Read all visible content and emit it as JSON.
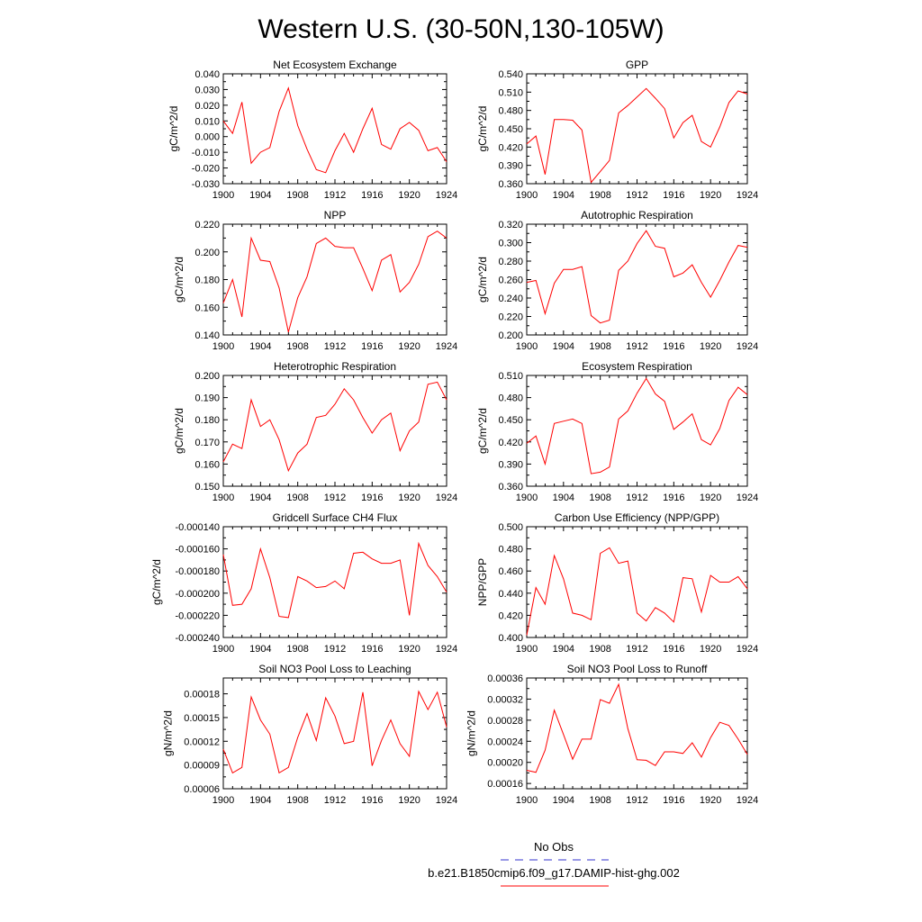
{
  "figure": {
    "title": "Western U.S. (30-50N,130-105W)",
    "legend": [
      {
        "label": "No Obs",
        "color": "#3333cc",
        "style": "dashed"
      },
      {
        "label": "b.e21.B1850cmip6.f09_g17.DAMIP-hist-ghg.002",
        "color": "#ff0000",
        "style": "solid"
      }
    ]
  },
  "colors": {
    "series": "#ff0000",
    "axis": "#000000"
  },
  "chart_data": [
    {
      "type": "line",
      "title": "Net Ecosystem Exchange",
      "ylabel": "gC/m^2/d",
      "xlim": [
        1900,
        1924
      ],
      "ylim": [
        -0.03,
        0.04
      ],
      "xticks": [
        1900,
        1904,
        1908,
        1912,
        1916,
        1920,
        1924
      ],
      "yticks": [
        "0.040",
        "0.030",
        "0.020",
        "0.010",
        "0.000",
        "-0.010",
        "-0.020",
        "-0.030"
      ],
      "x": [
        1900,
        1901,
        1902,
        1903,
        1904,
        1905,
        1906,
        1907,
        1908,
        1909,
        1910,
        1911,
        1912,
        1913,
        1914,
        1915,
        1916,
        1917,
        1918,
        1919,
        1920,
        1921,
        1922,
        1923,
        1924
      ],
      "series": [
        {
          "values": [
            0.01,
            0.002,
            0.022,
            -0.017,
            -0.01,
            -0.007,
            0.016,
            0.031,
            0.007,
            -0.008,
            -0.021,
            -0.023,
            -0.009,
            0.002,
            -0.01,
            0.005,
            0.018,
            -0.005,
            -0.008,
            0.005,
            0.009,
            0.004,
            -0.009,
            -0.007,
            -0.016
          ]
        }
      ]
    },
    {
      "type": "line",
      "title": "GPP",
      "ylabel": "gC/m^2/d",
      "xlim": [
        1900,
        1924
      ],
      "ylim": [
        0.36,
        0.54
      ],
      "xticks": [
        1900,
        1904,
        1908,
        1912,
        1916,
        1920,
        1924
      ],
      "yticks": [
        "0.540",
        "0.510",
        "0.480",
        "0.450",
        "0.420",
        "0.390",
        "0.360"
      ],
      "x": [
        1900,
        1901,
        1902,
        1903,
        1904,
        1905,
        1906,
        1907,
        1908,
        1909,
        1910,
        1911,
        1912,
        1913,
        1914,
        1915,
        1916,
        1917,
        1918,
        1919,
        1920,
        1921,
        1922,
        1923,
        1924
      ],
      "series": [
        {
          "values": [
            0.425,
            0.438,
            0.375,
            0.465,
            0.465,
            0.464,
            0.448,
            0.362,
            0.38,
            0.398,
            0.476,
            0.488,
            0.502,
            0.516,
            0.5,
            0.483,
            0.435,
            0.46,
            0.472,
            0.429,
            0.42,
            0.453,
            0.493,
            0.512,
            0.507
          ]
        }
      ]
    },
    {
      "type": "line",
      "title": "NPP",
      "ylabel": "gC/m^2/d",
      "xlim": [
        1900,
        1924
      ],
      "ylim": [
        0.14,
        0.22
      ],
      "xticks": [
        1900,
        1904,
        1908,
        1912,
        1916,
        1920,
        1924
      ],
      "yticks": [
        "0.220",
        "0.200",
        "0.180",
        "0.160",
        "0.140"
      ],
      "x": [
        1900,
        1901,
        1902,
        1903,
        1904,
        1905,
        1906,
        1907,
        1908,
        1909,
        1910,
        1911,
        1912,
        1913,
        1914,
        1915,
        1916,
        1917,
        1918,
        1919,
        1920,
        1921,
        1922,
        1923,
        1924
      ],
      "series": [
        {
          "values": [
            0.163,
            0.18,
            0.153,
            0.21,
            0.194,
            0.193,
            0.174,
            0.142,
            0.167,
            0.182,
            0.206,
            0.21,
            0.204,
            0.203,
            0.203,
            0.188,
            0.172,
            0.194,
            0.198,
            0.171,
            0.178,
            0.191,
            0.211,
            0.215,
            0.21
          ]
        }
      ]
    },
    {
      "type": "line",
      "title": "Autotrophic Respiration",
      "ylabel": "gC/m^2/d",
      "xlim": [
        1900,
        1924
      ],
      "ylim": [
        0.2,
        0.32
      ],
      "xticks": [
        1900,
        1904,
        1908,
        1912,
        1916,
        1920,
        1924
      ],
      "yticks": [
        "0.320",
        "0.300",
        "0.280",
        "0.260",
        "0.240",
        "0.220",
        "0.200"
      ],
      "x": [
        1900,
        1901,
        1902,
        1903,
        1904,
        1905,
        1906,
        1907,
        1908,
        1909,
        1910,
        1911,
        1912,
        1913,
        1914,
        1915,
        1916,
        1917,
        1918,
        1919,
        1920,
        1921,
        1922,
        1923,
        1924
      ],
      "series": [
        {
          "values": [
            0.257,
            0.259,
            0.223,
            0.256,
            0.271,
            0.271,
            0.274,
            0.221,
            0.213,
            0.216,
            0.27,
            0.28,
            0.299,
            0.313,
            0.296,
            0.294,
            0.263,
            0.267,
            0.276,
            0.257,
            0.241,
            0.259,
            0.279,
            0.297,
            0.295
          ]
        }
      ]
    },
    {
      "type": "line",
      "title": "Heterotrophic Respiration",
      "ylabel": "gC/m^2/d",
      "xlim": [
        1900,
        1924
      ],
      "ylim": [
        0.15,
        0.2
      ],
      "xticks": [
        1900,
        1904,
        1908,
        1912,
        1916,
        1920,
        1924
      ],
      "yticks": [
        "0.200",
        "0.190",
        "0.180",
        "0.170",
        "0.160",
        "0.150"
      ],
      "x": [
        1900,
        1901,
        1902,
        1903,
        1904,
        1905,
        1906,
        1907,
        1908,
        1909,
        1910,
        1911,
        1912,
        1913,
        1914,
        1915,
        1916,
        1917,
        1918,
        1919,
        1920,
        1921,
        1922,
        1923,
        1924
      ],
      "series": [
        {
          "values": [
            0.161,
            0.169,
            0.167,
            0.189,
            0.177,
            0.18,
            0.171,
            0.157,
            0.165,
            0.169,
            0.181,
            0.182,
            0.187,
            0.194,
            0.189,
            0.181,
            0.174,
            0.18,
            0.183,
            0.166,
            0.175,
            0.179,
            0.196,
            0.197,
            0.189
          ]
        }
      ]
    },
    {
      "type": "line",
      "title": "Ecosystem Respiration",
      "ylabel": "gC/m^2/d",
      "xlim": [
        1900,
        1924
      ],
      "ylim": [
        0.36,
        0.51
      ],
      "xticks": [
        1900,
        1904,
        1908,
        1912,
        1916,
        1920,
        1924
      ],
      "yticks": [
        "0.510",
        "0.480",
        "0.450",
        "0.420",
        "0.390",
        "0.360"
      ],
      "x": [
        1900,
        1901,
        1902,
        1903,
        1904,
        1905,
        1906,
        1907,
        1908,
        1909,
        1910,
        1911,
        1912,
        1913,
        1914,
        1915,
        1916,
        1917,
        1918,
        1919,
        1920,
        1921,
        1922,
        1923,
        1924
      ],
      "series": [
        {
          "values": [
            0.418,
            0.428,
            0.39,
            0.445,
            0.448,
            0.451,
            0.445,
            0.377,
            0.379,
            0.386,
            0.451,
            0.462,
            0.486,
            0.506,
            0.485,
            0.475,
            0.437,
            0.447,
            0.458,
            0.423,
            0.416,
            0.438,
            0.476,
            0.494,
            0.484
          ]
        }
      ]
    },
    {
      "type": "line",
      "title": "Gridcell Surface CH4 Flux",
      "ylabel": "gC/m^2/d",
      "xlim": [
        1900,
        1924
      ],
      "ylim": [
        -0.00024,
        -0.00014
      ],
      "xticks": [
        1900,
        1904,
        1908,
        1912,
        1916,
        1920,
        1924
      ],
      "yticks": [
        "-0.000140",
        "-0.000160",
        "-0.000180",
        "-0.000200",
        "-0.000220",
        "-0.000240"
      ],
      "x": [
        1900,
        1901,
        1902,
        1903,
        1904,
        1905,
        1906,
        1907,
        1908,
        1909,
        1910,
        1911,
        1912,
        1913,
        1914,
        1915,
        1916,
        1917,
        1918,
        1919,
        1920,
        1921,
        1922,
        1923,
        1924
      ],
      "series": [
        {
          "values": [
            -0.000165,
            -0.000211,
            -0.00021,
            -0.000196,
            -0.00016,
            -0.000186,
            -0.000221,
            -0.000222,
            -0.000185,
            -0.000189,
            -0.000195,
            -0.000194,
            -0.000189,
            -0.000196,
            -0.000164,
            -0.000163,
            -0.000169,
            -0.000173,
            -0.000173,
            -0.00017,
            -0.00022,
            -0.000155,
            -0.000175,
            -0.000185,
            -0.000199
          ]
        }
      ]
    },
    {
      "type": "line",
      "title": "Carbon Use Efficiency (NPP/GPP)",
      "ylabel": "NPP/GPP",
      "xlim": [
        1900,
        1924
      ],
      "ylim": [
        0.4,
        0.5
      ],
      "xticks": [
        1900,
        1904,
        1908,
        1912,
        1916,
        1920,
        1924
      ],
      "yticks": [
        "0.500",
        "0.480",
        "0.460",
        "0.440",
        "0.420",
        "0.400"
      ],
      "x": [
        1900,
        1901,
        1902,
        1903,
        1904,
        1905,
        1906,
        1907,
        1908,
        1909,
        1910,
        1911,
        1912,
        1913,
        1914,
        1915,
        1916,
        1917,
        1918,
        1919,
        1920,
        1921,
        1922,
        1923,
        1924
      ],
      "series": [
        {
          "values": [
            0.402,
            0.445,
            0.43,
            0.474,
            0.453,
            0.422,
            0.42,
            0.416,
            0.476,
            0.481,
            0.467,
            0.469,
            0.422,
            0.415,
            0.427,
            0.422,
            0.414,
            0.454,
            0.453,
            0.423,
            0.456,
            0.45,
            0.45,
            0.455,
            0.444
          ]
        }
      ]
    },
    {
      "type": "line",
      "title": "Soil NO3 Pool Loss to Leaching",
      "ylabel": "gN/m^2/d",
      "xlim": [
        1900,
        1924
      ],
      "ylim": [
        6e-05,
        0.0002
      ],
      "xticks": [
        1900,
        1904,
        1908,
        1912,
        1916,
        1920,
        1924
      ],
      "yticks": [
        "0.00018",
        "0.00015",
        "0.00012",
        "0.00009",
        "0.00006"
      ],
      "x": [
        1900,
        1901,
        1902,
        1903,
        1904,
        1905,
        1906,
        1907,
        1908,
        1909,
        1910,
        1911,
        1912,
        1913,
        1914,
        1915,
        1916,
        1917,
        1918,
        1919,
        1920,
        1921,
        1922,
        1923,
        1924
      ],
      "series": [
        {
          "values": [
            0.00011,
            8e-05,
            8.7e-05,
            0.000176,
            0.000147,
            0.000129,
            8e-05,
            8.7e-05,
            0.000125,
            0.000155,
            0.000121,
            0.000175,
            0.000152,
            0.000117,
            0.00012,
            0.000182,
            8.9e-05,
            0.000121,
            0.000147,
            0.000117,
            0.000101,
            0.000183,
            0.00016,
            0.000182,
            0.000138
          ]
        }
      ]
    },
    {
      "type": "line",
      "title": "Soil NO3 Pool Loss to Runoff",
      "ylabel": "gN/m^2/d",
      "xlim": [
        1900,
        1924
      ],
      "ylim": [
        0.00015,
        0.00036
      ],
      "xticks": [
        1900,
        1904,
        1908,
        1912,
        1916,
        1920,
        1924
      ],
      "yticks": [
        "0.00036",
        "0.00032",
        "0.00028",
        "0.00024",
        "0.00020",
        "0.00016"
      ],
      "x": [
        1900,
        1901,
        1902,
        1903,
        1904,
        1905,
        1906,
        1907,
        1908,
        1909,
        1910,
        1911,
        1912,
        1913,
        1914,
        1915,
        1916,
        1917,
        1918,
        1919,
        1920,
        1921,
        1922,
        1923,
        1924
      ],
      "series": [
        {
          "values": [
            0.000185,
            0.000181,
            0.000223,
            0.000299,
            0.000253,
            0.000206,
            0.000244,
            0.000244,
            0.000319,
            0.000312,
            0.000348,
            0.000264,
            0.000205,
            0.000204,
            0.000194,
            0.00022,
            0.00022,
            0.000217,
            0.000237,
            0.00021,
            0.000247,
            0.000276,
            0.00027,
            0.000244,
            0.000215
          ]
        }
      ]
    }
  ]
}
